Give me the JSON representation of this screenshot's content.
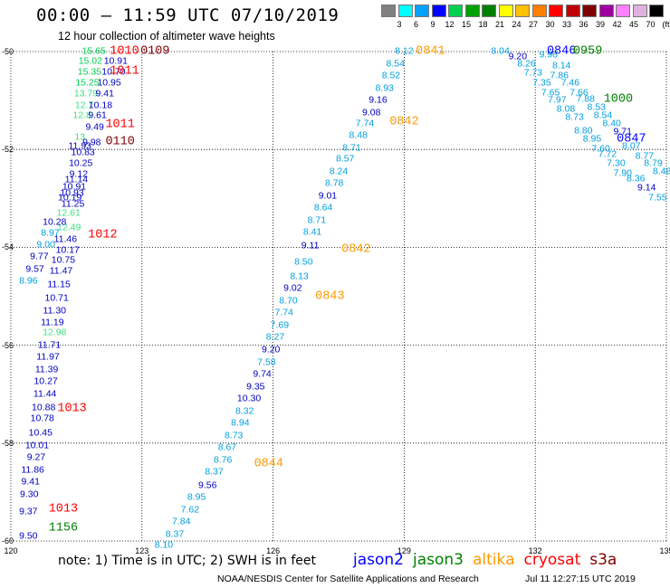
{
  "header": {
    "title": "00:00 – 11:59 UTC 07/10/2019",
    "subtitle": "12 hour collection of altimeter wave heights"
  },
  "scale": {
    "labels": [
      "3",
      "6",
      "9",
      "12",
      "15",
      "18",
      "21",
      "24",
      "27",
      "30",
      "33",
      "36",
      "39",
      "42",
      "45",
      "70",
      "(ft)"
    ],
    "colors": [
      "#808080",
      "#00ffff",
      "#00a0ff",
      "#0000ff",
      "#00d050",
      "#00a000",
      "#008000",
      "#ffff00",
      "#ffc000",
      "#ff8000",
      "#ff0000",
      "#c00000",
      "#800000",
      "#a000a0",
      "#ff80ff",
      "#e0b0e0",
      "#000000"
    ]
  },
  "axes": {
    "y_labels": [
      "-50",
      "-52",
      "-54",
      "-56",
      "-58",
      "-60"
    ],
    "x_labels": [
      "120",
      "123",
      "126",
      "129",
      "132",
      "135"
    ],
    "lat_range": [
      -60,
      -50
    ],
    "lon_range": [
      120,
      135
    ]
  },
  "note": "note: 1) Time is in UTC; 2) SWH is in feet",
  "legend": [
    {
      "name": "jason2",
      "color": "#0000ff"
    },
    {
      "name": "jason3",
      "color": "#008000"
    },
    {
      "name": "altika",
      "color": "#ff9900"
    },
    {
      "name": "cryosat",
      "color": "#ff0000"
    },
    {
      "name": "s3a",
      "color": "#800000"
    }
  ],
  "footer": {
    "org": "NOAA/NESDIS Center for Satellite Applications and Research",
    "timestamp": "Jul 11 12:27:15 UTC 2019"
  },
  "times": [
    {
      "t": "1010",
      "c": "#ff0000",
      "lon": 122.6,
      "lat": -50.0
    },
    {
      "t": "0109",
      "c": "#800000",
      "lon": 123.3,
      "lat": -50.0
    },
    {
      "t": "1011",
      "c": "#ff0000",
      "lon": 122.6,
      "lat": -50.4
    },
    {
      "t": "1011",
      "c": "#ff0000",
      "lon": 122.5,
      "lat": -51.5
    },
    {
      "t": "0110",
      "c": "#800000",
      "lon": 122.5,
      "lat": -51.85
    },
    {
      "t": "1012",
      "c": "#ff0000",
      "lon": 122.1,
      "lat": -53.75
    },
    {
      "t": "1013",
      "c": "#ff0000",
      "lon": 121.4,
      "lat": -57.3
    },
    {
      "t": "1013",
      "c": "#ff0000",
      "lon": 121.2,
      "lat": -59.35
    },
    {
      "t": "1156",
      "c": "#008000",
      "lon": 121.2,
      "lat": -59.75
    },
    {
      "t": "0841",
      "c": "#ff9900",
      "lon": 129.6,
      "lat": -50.0
    },
    {
      "t": "0842",
      "c": "#ff9900",
      "lon": 129.0,
      "lat": -51.45
    },
    {
      "t": "0842",
      "c": "#ff9900",
      "lon": 127.9,
      "lat": -54.05
    },
    {
      "t": "0843",
      "c": "#ff9900",
      "lon": 127.3,
      "lat": -55.0
    },
    {
      "t": "0844",
      "c": "#ff9900",
      "lon": 125.9,
      "lat": -58.42
    },
    {
      "t": "0846",
      "c": "#0000ff",
      "lon": 132.6,
      "lat": -50.0
    },
    {
      "t": "0959",
      "c": "#008000",
      "lon": 133.2,
      "lat": -50.0
    },
    {
      "t": "1000",
      "c": "#008000",
      "lon": 133.9,
      "lat": -50.98
    },
    {
      "t": "0847",
      "c": "#0000ff",
      "lon": 134.2,
      "lat": -51.8
    }
  ],
  "tracks": [
    {
      "name": "jason3-left",
      "points": [
        {
          "v": "15.65",
          "c": "#00d050",
          "lon": 121.9,
          "lat": -50.0
        },
        {
          "v": "15.02",
          "c": "#00d050",
          "lon": 121.82,
          "lat": -50.2
        },
        {
          "v": "15.35",
          "c": "#00d050",
          "lon": 121.8,
          "lat": -50.42
        },
        {
          "v": "15.25",
          "c": "#00d050",
          "lon": 121.75,
          "lat": -50.65
        },
        {
          "v": "13.79",
          "c": "#40e080",
          "lon": 121.72,
          "lat": -50.87
        },
        {
          "v": "12.7",
          "c": "#40e080",
          "lon": 121.68,
          "lat": -51.1
        },
        {
          "v": "12.8",
          "c": "#40e080",
          "lon": 121.63,
          "lat": -51.32
        },
        {
          "v": "13",
          "c": "#40e080",
          "lon": 121.58,
          "lat": -51.75
        },
        {
          "v": "12.61",
          "c": "#40e080",
          "lon": 121.32,
          "lat": -53.3
        },
        {
          "v": "12.49",
          "c": "#40e080",
          "lon": 121.33,
          "lat": -53.6
        },
        {
          "v": "12.98",
          "c": "#40e080",
          "lon": 121.0,
          "lat": -55.75
        }
      ]
    },
    {
      "name": "jason2-left",
      "points": [
        {
          "v": "10.91",
          "c": "#0000c0",
          "lon": 122.4,
          "lat": -50.2
        },
        {
          "v": "10.70",
          "c": "#0000c0",
          "lon": 122.35,
          "lat": -50.43
        },
        {
          "v": "10.95",
          "c": "#0000c0",
          "lon": 122.25,
          "lat": -50.65
        },
        {
          "v": "9.41",
          "c": "#0000c0",
          "lon": 122.15,
          "lat": -50.87
        },
        {
          "v": "10.18",
          "c": "#0000c0",
          "lon": 122.05,
          "lat": -51.1
        },
        {
          "v": "9.61",
          "c": "#0000c0",
          "lon": 121.98,
          "lat": -51.32
        },
        {
          "v": "9.49",
          "c": "#0000c0",
          "lon": 121.92,
          "lat": -51.55
        },
        {
          "v": "9.98",
          "c": "#0000c0",
          "lon": 121.85,
          "lat": -51.87
        },
        {
          "v": "11.93",
          "c": "#0000c0",
          "lon": 121.58,
          "lat": -51.95
        },
        {
          "v": "10.83",
          "c": "#0000c0",
          "lon": 121.65,
          "lat": -52.07
        },
        {
          "v": "10.25",
          "c": "#0000c0",
          "lon": 121.6,
          "lat": -52.3
        },
        {
          "v": "9.12",
          "c": "#0000c0",
          "lon": 121.55,
          "lat": -52.52
        },
        {
          "v": "11.14",
          "c": "#0000c0",
          "lon": 121.5,
          "lat": -52.63
        },
        {
          "v": "10.91",
          "c": "#0000c0",
          "lon": 121.45,
          "lat": -52.77
        },
        {
          "v": "10.93",
          "c": "#0000c0",
          "lon": 121.4,
          "lat": -52.9
        },
        {
          "v": "10.19",
          "c": "#0000c0",
          "lon": 121.35,
          "lat": -53.0
        },
        {
          "v": "11.25",
          "c": "#0000c0",
          "lon": 121.42,
          "lat": -53.13
        },
        {
          "v": "10.28",
          "c": "#0000c0",
          "lon": 121.0,
          "lat": -53.5
        },
        {
          "v": "8.97",
          "c": "#00a0e0",
          "lon": 120.9,
          "lat": -53.72
        },
        {
          "v": "11.46",
          "c": "#0000c0",
          "lon": 121.25,
          "lat": -53.85
        },
        {
          "v": "9.00",
          "c": "#00a0e0",
          "lon": 120.8,
          "lat": -53.95
        },
        {
          "v": "10.17",
          "c": "#0000c0",
          "lon": 121.3,
          "lat": -54.07
        },
        {
          "v": "9.77",
          "c": "#0000c0",
          "lon": 120.65,
          "lat": -54.2
        },
        {
          "v": "10.75",
          "c": "#0000c0",
          "lon": 121.2,
          "lat": -54.27
        },
        {
          "v": "9.57",
          "c": "#0000c0",
          "lon": 120.55,
          "lat": -54.45
        },
        {
          "v": "11.47",
          "c": "#0000c0",
          "lon": 121.15,
          "lat": -54.5
        },
        {
          "v": "8.96",
          "c": "#00a0e0",
          "lon": 120.4,
          "lat": -54.7
        },
        {
          "v": "11.15",
          "c": "#0000c0",
          "lon": 121.1,
          "lat": -54.77
        },
        {
          "v": "10.71",
          "c": "#0000c0",
          "lon": 121.05,
          "lat": -55.05
        },
        {
          "v": "11.30",
          "c": "#0000c0",
          "lon": 121.0,
          "lat": -55.3
        },
        {
          "v": "11.19",
          "c": "#0000c0",
          "lon": 120.95,
          "lat": -55.55
        },
        {
          "v": "11.71",
          "c": "#0000c0",
          "lon": 120.88,
          "lat": -56.0
        },
        {
          "v": "11.97",
          "c": "#0000c0",
          "lon": 120.85,
          "lat": -56.25
        },
        {
          "v": "11.39",
          "c": "#0000c0",
          "lon": 120.82,
          "lat": -56.5
        },
        {
          "v": "10.27",
          "c": "#0000c0",
          "lon": 120.8,
          "lat": -56.75
        },
        {
          "v": "11.44",
          "c": "#0000c0",
          "lon": 120.78,
          "lat": -57.0
        },
        {
          "v": "10.88",
          "c": "#0000c0",
          "lon": 120.75,
          "lat": -57.28
        },
        {
          "v": "10.78",
          "c": "#0000c0",
          "lon": 120.72,
          "lat": -57.5
        },
        {
          "v": "10.45",
          "c": "#0000c0",
          "lon": 120.68,
          "lat": -57.8
        },
        {
          "v": "10.01",
          "c": "#0000c0",
          "lon": 120.6,
          "lat": -58.05
        },
        {
          "v": "9.27",
          "c": "#0000c0",
          "lon": 120.58,
          "lat": -58.3
        },
        {
          "v": "11.86",
          "c": "#0000c0",
          "lon": 120.5,
          "lat": -58.55
        },
        {
          "v": "9.41",
          "c": "#0000c0",
          "lon": 120.45,
          "lat": -58.8
        },
        {
          "v": "9.30",
          "c": "#0000c0",
          "lon": 120.42,
          "lat": -59.05
        },
        {
          "v": "9.37",
          "c": "#0000c0",
          "lon": 120.4,
          "lat": -59.4
        },
        {
          "v": "9.50",
          "c": "#0000c0",
          "lon": 120.4,
          "lat": -59.9
        }
      ]
    },
    {
      "name": "altika-middle",
      "points": [
        {
          "v": "8.12",
          "c": "#00a0e0",
          "lon": 129.0,
          "lat": -50.0
        },
        {
          "v": "8.54",
          "c": "#00a0e0",
          "lon": 128.8,
          "lat": -50.25
        },
        {
          "v": "8.52",
          "c": "#00a0e0",
          "lon": 128.7,
          "lat": -50.5
        },
        {
          "v": "8.93",
          "c": "#00a0e0",
          "lon": 128.55,
          "lat": -50.75
        },
        {
          "v": "9.16",
          "c": "#0000c0",
          "lon": 128.4,
          "lat": -51.0
        },
        {
          "v": "9.08",
          "c": "#0000c0",
          "lon": 128.25,
          "lat": -51.25
        },
        {
          "v": "7.74",
          "c": "#00a0e0",
          "lon": 128.1,
          "lat": -51.48
        },
        {
          "v": "8.48",
          "c": "#00a0e0",
          "lon": 127.95,
          "lat": -51.72
        },
        {
          "v": "8.71",
          "c": "#00a0e0",
          "lon": 127.8,
          "lat": -51.98
        },
        {
          "v": "8.57",
          "c": "#00a0e0",
          "lon": 127.65,
          "lat": -52.2
        },
        {
          "v": "8.24",
          "c": "#00a0e0",
          "lon": 127.5,
          "lat": -52.45
        },
        {
          "v": "8.78",
          "c": "#00a0e0",
          "lon": 127.4,
          "lat": -52.7
        },
        {
          "v": "9.01",
          "c": "#0000c0",
          "lon": 127.25,
          "lat": -52.95
        },
        {
          "v": "8.64",
          "c": "#00a0e0",
          "lon": 127.15,
          "lat": -53.2
        },
        {
          "v": "8.71",
          "c": "#00a0e0",
          "lon": 127.0,
          "lat": -53.45
        },
        {
          "v": "8.41",
          "c": "#00a0e0",
          "lon": 126.9,
          "lat": -53.7
        },
        {
          "v": "9.11",
          "c": "#0000c0",
          "lon": 126.85,
          "lat": -53.97
        },
        {
          "v": "8.50",
          "c": "#00a0e0",
          "lon": 126.7,
          "lat": -54.3
        },
        {
          "v": "8.13",
          "c": "#00a0e0",
          "lon": 126.6,
          "lat": -54.6
        },
        {
          "v": "9.02",
          "c": "#0000c0",
          "lon": 126.45,
          "lat": -54.85
        },
        {
          "v": "8.70",
          "c": "#00a0e0",
          "lon": 126.35,
          "lat": -55.1
        },
        {
          "v": "7.74",
          "c": "#00a0e0",
          "lon": 126.25,
          "lat": -55.35
        },
        {
          "v": "7.69",
          "c": "#00a0e0",
          "lon": 126.15,
          "lat": -55.6
        },
        {
          "v": "8.27",
          "c": "#00a0e0",
          "lon": 126.05,
          "lat": -55.85
        },
        {
          "v": "9.20",
          "c": "#0000c0",
          "lon": 125.95,
          "lat": -56.1
        },
        {
          "v": "7.58",
          "c": "#00a0e0",
          "lon": 125.85,
          "lat": -56.35
        },
        {
          "v": "9.74",
          "c": "#0000c0",
          "lon": 125.75,
          "lat": -56.6
        },
        {
          "v": "9.35",
          "c": "#0000c0",
          "lon": 125.6,
          "lat": -56.85
        },
        {
          "v": "10.30",
          "c": "#0000c0",
          "lon": 125.45,
          "lat": -57.1
        },
        {
          "v": "8.32",
          "c": "#00a0e0",
          "lon": 125.35,
          "lat": -57.35
        },
        {
          "v": "8.94",
          "c": "#00a0e0",
          "lon": 125.25,
          "lat": -57.6
        },
        {
          "v": "8.73",
          "c": "#00a0e0",
          "lon": 125.1,
          "lat": -57.85
        },
        {
          "v": "8.67",
          "c": "#00a0e0",
          "lon": 124.95,
          "lat": -58.1
        },
        {
          "v": "8.76",
          "c": "#00a0e0",
          "lon": 124.85,
          "lat": -58.35
        },
        {
          "v": "8.37",
          "c": "#00a0e0",
          "lon": 124.65,
          "lat": -58.6
        },
        {
          "v": "9.56",
          "c": "#0000c0",
          "lon": 124.5,
          "lat": -58.87
        },
        {
          "v": "8.95",
          "c": "#00a0e0",
          "lon": 124.25,
          "lat": -59.12
        },
        {
          "v": "7.62",
          "c": "#00a0e0",
          "lon": 124.1,
          "lat": -59.37
        },
        {
          "v": "7.84",
          "c": "#00a0e0",
          "lon": 123.9,
          "lat": -59.62
        },
        {
          "v": "8.37",
          "c": "#00a0e0",
          "lon": 123.75,
          "lat": -59.87
        },
        {
          "v": "8.10",
          "c": "#00a0e0",
          "lon": 123.5,
          "lat": -60.1
        }
      ]
    },
    {
      "name": "right-cluster",
      "points": [
        {
          "v": "8.04",
          "c": "#00a0e0",
          "lon": 131.2,
          "lat": -50.0
        },
        {
          "v": "9.20",
          "c": "#0000c0",
          "lon": 131.6,
          "lat": -50.12
        },
        {
          "v": "8.26",
          "c": "#00a0e0",
          "lon": 131.8,
          "lat": -50.25
        },
        {
          "v": "7.73",
          "c": "#00a0e0",
          "lon": 131.95,
          "lat": -50.45
        },
        {
          "v": "7.35",
          "c": "#00a0e0",
          "lon": 132.15,
          "lat": -50.65
        },
        {
          "v": "7.65",
          "c": "#00a0e0",
          "lon": 132.35,
          "lat": -50.85
        },
        {
          "v": "7.97",
          "c": "#00a0e0",
          "lon": 132.5,
          "lat": -51.0
        },
        {
          "v": "8.08",
          "c": "#00a0e0",
          "lon": 132.7,
          "lat": -51.18
        },
        {
          "v": "8.73",
          "c": "#00a0e0",
          "lon": 132.9,
          "lat": -51.35
        },
        {
          "v": "8.80",
          "c": "#00a0e0",
          "lon": 133.1,
          "lat": -51.62
        },
        {
          "v": "8.95",
          "c": "#00a0e0",
          "lon": 133.3,
          "lat": -51.8
        },
        {
          "v": "7.60",
          "c": "#00a0e0",
          "lon": 133.5,
          "lat": -52.0
        },
        {
          "v": "7.72",
          "c": "#00a0e0",
          "lon": 133.65,
          "lat": -52.1
        },
        {
          "v": "7.30",
          "c": "#00a0e0",
          "lon": 133.85,
          "lat": -52.3
        },
        {
          "v": "7.90",
          "c": "#00a0e0",
          "lon": 134.0,
          "lat": -52.5
        },
        {
          "v": "8.36",
          "c": "#00a0e0",
          "lon": 134.3,
          "lat": -52.6
        },
        {
          "v": "9.14",
          "c": "#0000c0",
          "lon": 134.55,
          "lat": -52.8
        },
        {
          "v": "7.55",
          "c": "#00a0e0",
          "lon": 134.8,
          "lat": -53.0
        },
        {
          "v": "9.96",
          "c": "#00a0e0",
          "lon": 132.3,
          "lat": -50.08
        },
        {
          "v": "8.14",
          "c": "#00a0e0",
          "lon": 132.6,
          "lat": -50.3
        },
        {
          "v": "7.86",
          "c": "#00a0e0",
          "lon": 132.55,
          "lat": -50.5
        },
        {
          "v": "7.46",
          "c": "#00a0e0",
          "lon": 132.8,
          "lat": -50.65
        },
        {
          "v": "7.66",
          "c": "#00a0e0",
          "lon": 133.0,
          "lat": -50.85
        },
        {
          "v": "7.88",
          "c": "#00a0e0",
          "lon": 133.15,
          "lat": -50.98
        },
        {
          "v": "8.53",
          "c": "#00a0e0",
          "lon": 133.4,
          "lat": -51.15
        },
        {
          "v": "8.54",
          "c": "#00a0e0",
          "lon": 133.55,
          "lat": -51.32
        },
        {
          "v": "8.40",
          "c": "#00a0e0",
          "lon": 133.75,
          "lat": -51.48
        },
        {
          "v": "9.71",
          "c": "#0000c0",
          "lon": 134.0,
          "lat": -51.65
        },
        {
          "v": "8.07",
          "c": "#00a0e0",
          "lon": 134.2,
          "lat": -51.95
        },
        {
          "v": "8.77",
          "c": "#00a0e0",
          "lon": 134.5,
          "lat": -52.15
        },
        {
          "v": "8.79",
          "c": "#00a0e0",
          "lon": 134.7,
          "lat": -52.3
        },
        {
          "v": "8.48",
          "c": "#00a0e0",
          "lon": 134.9,
          "lat": -52.45
        }
      ]
    }
  ]
}
